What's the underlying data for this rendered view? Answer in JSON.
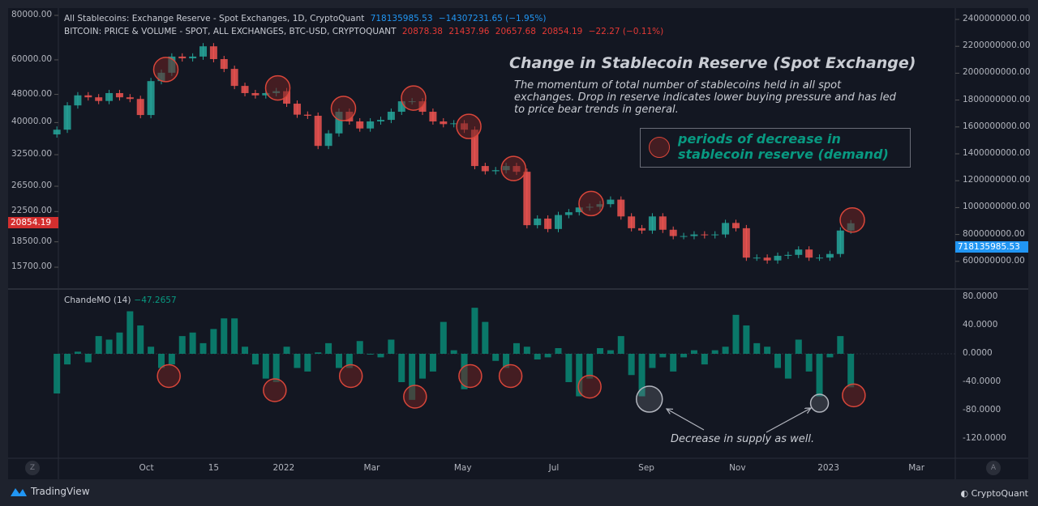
{
  "header": {
    "series1_label": "All Stablecoins: Exchange Reserve - Spot Exchanges, 1D, CryptoQuant",
    "series1_values": [
      "718135985.53",
      "−14307231.65 (−1.95%)"
    ],
    "series2_label": "BITCOIN: PRICE & VOLUME - SPOT, ALL EXCHANGES, BTC-USD, CRYPTOQUANT",
    "series2_values": [
      "20878.38",
      "21437.96",
      "20657.68",
      "20854.19",
      "−22.27 (−0.11%)"
    ]
  },
  "annotations": {
    "title": "Change in Stablecoin Reserve (Spot Exchange)",
    "description": "The momentum of total number of stablecoins held in all spot exchanges. Drop in reserve indicates lower buying pressure and has led to price bear trends in general.",
    "legend_text": "periods of decrease in stablecoin reserve (demand)",
    "note": "Decrease in supply as well."
  },
  "indicator": {
    "label": "ChandeMO (14)",
    "value": "−47.2657"
  },
  "tags": {
    "price": "20854.19",
    "reserve": "718135985.53"
  },
  "corners": {
    "left": "Z",
    "right": "A"
  },
  "footer": {
    "brand": "TradingView",
    "source": "CryptoQuant"
  },
  "colors": {
    "background": "#131722",
    "up": "#26a69a",
    "down": "#ef5350",
    "cmo": "#089981",
    "price_tag": "#d32f2f",
    "reserve_tag": "#2196f3",
    "highlight": "#d9463a"
  },
  "chart_data": [
    {
      "type": "candlestick",
      "series": [
        {
          "name": "BITCOIN: PRICE & VOLUME - SPOT, ALL EXCHANGES, BTC-USD, CRYPTOQUANT"
        }
      ],
      "y_scale": "log",
      "ylim": [
        15000,
        82000
      ],
      "xlim": [
        "2021-08-03",
        "2023-03-27"
      ],
      "grid": false,
      "y_ticks": [
        "80000.00",
        "60000.00",
        "48000.00",
        "40000.00",
        "32500.00",
        "26500.00",
        "22500.00",
        "18500.00",
        "15700.00"
      ],
      "y2_ticks": [
        "2400000000.00",
        "2200000000.00",
        "2000000000.00",
        "1800000000.00",
        "1600000000.00",
        "1400000000.00",
        "1200000000.00",
        "1000000000.00",
        "800000000.00",
        "600000000.00"
      ],
      "y2lim": [
        600000000,
        2400000000
      ],
      "dates": [
        "2021-08-02",
        "2021-08-09",
        "2021-08-16",
        "2021-08-23",
        "2021-08-30",
        "2021-09-06",
        "2021-09-13",
        "2021-09-20",
        "2021-09-27",
        "2021-10-04",
        "2021-10-11",
        "2021-10-18",
        "2021-10-25",
        "2021-11-01",
        "2021-11-08",
        "2021-11-15",
        "2021-11-22",
        "2021-11-29",
        "2021-12-06",
        "2021-12-13",
        "2021-12-20",
        "2021-12-27",
        "2022-01-03",
        "2022-01-10",
        "2022-01-17",
        "2022-01-24",
        "2022-01-31",
        "2022-02-07",
        "2022-02-14",
        "2022-02-21",
        "2022-02-28",
        "2022-03-07",
        "2022-03-14",
        "2022-03-21",
        "2022-03-28",
        "2022-04-04",
        "2022-04-11",
        "2022-04-18",
        "2022-04-25",
        "2022-05-02",
        "2022-05-09",
        "2022-05-16",
        "2022-05-23",
        "2022-05-30",
        "2022-06-06",
        "2022-06-13",
        "2022-06-20",
        "2022-06-27",
        "2022-07-04",
        "2022-07-11",
        "2022-07-18",
        "2022-07-25",
        "2022-08-01",
        "2022-08-08",
        "2022-08-15",
        "2022-08-22",
        "2022-08-29",
        "2022-09-05",
        "2022-09-12",
        "2022-09-19",
        "2022-09-26",
        "2022-10-03",
        "2022-10-10",
        "2022-10-17",
        "2022-10-24",
        "2022-10-31",
        "2022-11-07",
        "2022-11-14",
        "2022-11-21",
        "2022-11-28",
        "2022-12-05",
        "2022-12-12",
        "2022-12-19",
        "2022-12-26",
        "2023-01-02",
        "2023-01-09",
        "2023-01-16"
      ],
      "close": [
        38200,
        44700,
        47700,
        47100,
        46000,
        48400,
        47100,
        46600,
        42000,
        52300,
        55200,
        61300,
        60600,
        61300,
        65500,
        60300,
        56600,
        50700,
        48400,
        47700,
        48400,
        49000,
        45200,
        42100,
        41800,
        34400,
        37300,
        42900,
        40300,
        38500,
        40300,
        40700,
        42900,
        45900,
        45900,
        42900,
        40300,
        39600,
        39800,
        38200,
        30200,
        29200,
        29400,
        30200,
        29100,
        20600,
        21500,
        20100,
        22000,
        22400,
        23100,
        23200,
        23600,
        24300,
        21800,
        20200,
        19900,
        21800,
        20000,
        19200,
        19200,
        19400,
        19300,
        19400,
        20900,
        20200,
        16700,
        16700,
        16400,
        16900,
        17000,
        17600,
        16700,
        16700,
        17100,
        19900,
        20854.19
      ],
      "highlight_dates": [
        "2021-10-14",
        "2021-12-28",
        "2022-02-10",
        "2022-03-29",
        "2022-05-05",
        "2022-06-04",
        "2022-07-26",
        "2023-01-17"
      ]
    },
    {
      "type": "bar",
      "series": [
        {
          "name": "ChandeMO (14)"
        }
      ],
      "ylim": [
        -140,
        85
      ],
      "y_ticks": [
        "80.0000",
        "40.0000",
        "0.0000",
        "-40.0000",
        "-80.0000",
        "-120.0000"
      ],
      "x_ticks": [
        {
          "label": "Oct",
          "date": "2021-10-01"
        },
        {
          "label": "15",
          "date": "2021-11-15"
        },
        {
          "label": "2022",
          "date": "2022-01-01"
        },
        {
          "label": "Mar",
          "date": "2022-03-01"
        },
        {
          "label": "May",
          "date": "2022-05-01"
        },
        {
          "label": "Jul",
          "date": "2022-07-01"
        },
        {
          "label": "Sep",
          "date": "2022-09-01"
        },
        {
          "label": "Nov",
          "date": "2022-11-01"
        },
        {
          "label": "2023",
          "date": "2023-01-01"
        },
        {
          "label": "Mar",
          "date": "2023-03-01"
        }
      ],
      "values": [
        -56,
        -15,
        3,
        -12,
        25,
        20,
        30,
        60,
        40,
        10,
        -20,
        -15,
        25,
        30,
        15,
        35,
        50,
        50,
        10,
        -15,
        -35,
        -40,
        10,
        -20,
        -25,
        2,
        15,
        -20,
        -20,
        18,
        0,
        -5,
        20,
        -40,
        -65,
        -35,
        -25,
        45,
        5,
        -50,
        65,
        45,
        -10,
        -20,
        15,
        10,
        -8,
        -5,
        8,
        -40,
        -60,
        -35,
        8,
        5,
        25,
        -30,
        -60,
        -20,
        -5,
        -25,
        -5,
        5,
        -15,
        5,
        10,
        55,
        40,
        15,
        10,
        -20,
        -35,
        20,
        -25,
        -60,
        -5,
        25,
        -47.2657
      ],
      "highlight_dates": [
        "2021-10-16",
        "2021-12-26",
        "2022-02-15",
        "2022-03-30",
        "2022-05-06",
        "2022-06-02",
        "2022-07-25",
        "2023-01-18"
      ],
      "neutral_highlight_dates": [
        "2022-09-03",
        "2022-12-26"
      ]
    }
  ]
}
